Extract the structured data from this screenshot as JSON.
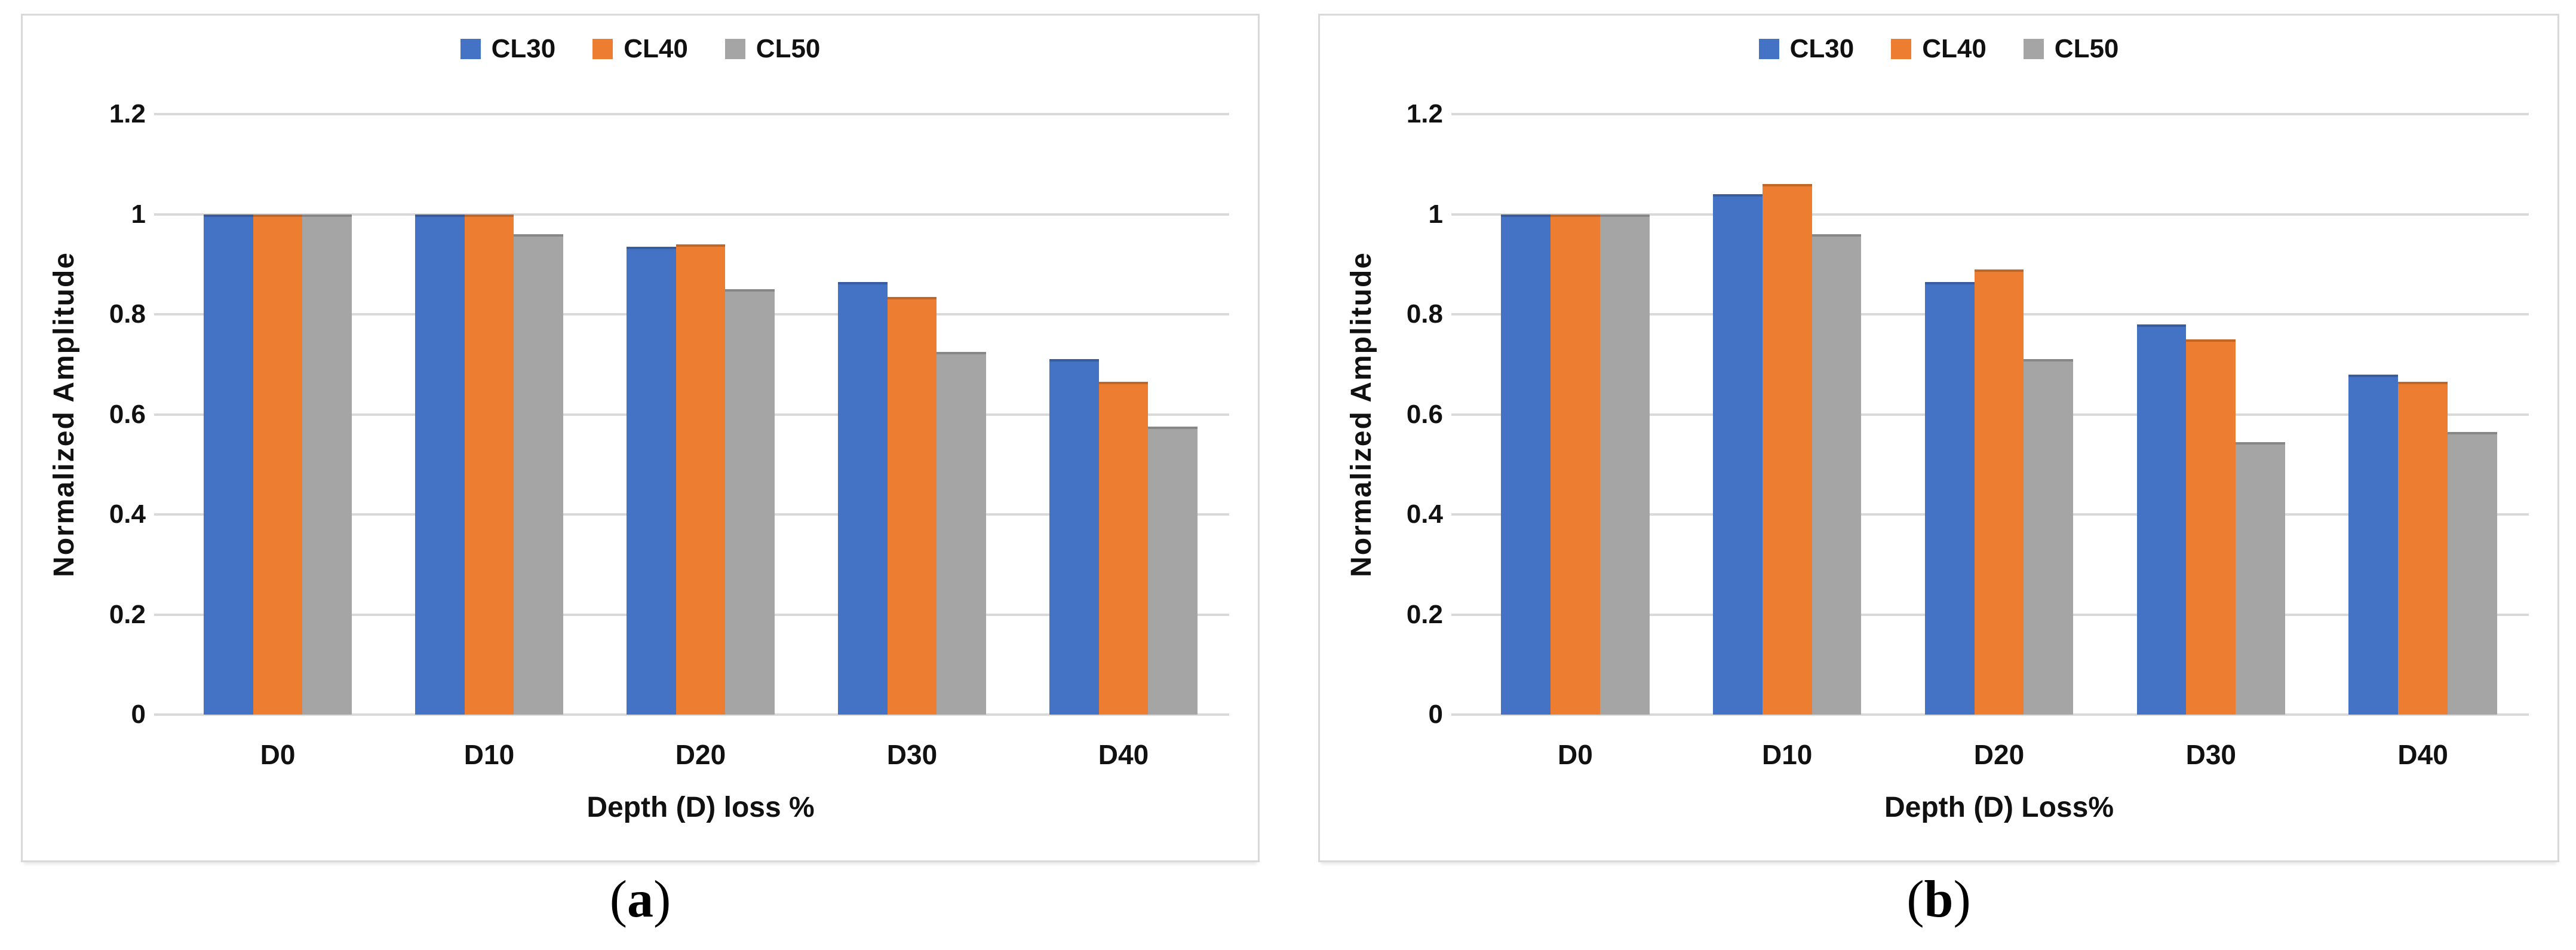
{
  "figure": {
    "panels": [
      {
        "id": "a",
        "caption": {
          "open": "(",
          "letter": "a",
          "close": ")"
        }
      },
      {
        "id": "b",
        "caption": {
          "open": "(",
          "letter": "b",
          "close": ")"
        }
      }
    ]
  },
  "colors": {
    "cl30": "#4472C4",
    "cl40": "#ED7D31",
    "cl50": "#A5A5A5",
    "gridline": "#D9D9D9",
    "panel_border": "#D9D9D9",
    "label_text": "#111111"
  },
  "chart_data": [
    {
      "type": "bar",
      "panel": "a",
      "title": "",
      "categories": [
        "D0",
        "D10",
        "D20",
        "D30",
        "D40"
      ],
      "series": [
        {
          "name": "CL30",
          "color": "#4472C4",
          "values": [
            1.0,
            1.0,
            0.935,
            0.865,
            0.71
          ]
        },
        {
          "name": "CL40",
          "color": "#ED7D31",
          "values": [
            1.0,
            1.0,
            0.94,
            0.835,
            0.665
          ]
        },
        {
          "name": "CL50",
          "color": "#A5A5A5",
          "values": [
            1.0,
            0.96,
            0.85,
            0.725,
            0.575
          ]
        }
      ],
      "xlabel": "Depth (D) loss %",
      "ylabel": "Normalized Amplitude",
      "ylim": [
        0,
        1.2
      ],
      "yticks": [
        0,
        0.2,
        0.4,
        0.6,
        0.8,
        1,
        1.2
      ],
      "ytick_labels": [
        "0",
        "0.2",
        "0.4",
        "0.6",
        "0.8",
        "1",
        "1.2"
      ],
      "grid": true,
      "legend_position": "top-center",
      "caption": "(a)"
    },
    {
      "type": "bar",
      "panel": "b",
      "title": "",
      "categories": [
        "D0",
        "D10",
        "D20",
        "D30",
        "D40"
      ],
      "series": [
        {
          "name": "CL30",
          "color": "#4472C4",
          "values": [
            1.0,
            1.04,
            0.865,
            0.78,
            0.68
          ]
        },
        {
          "name": "CL40",
          "color": "#ED7D31",
          "values": [
            1.0,
            1.06,
            0.89,
            0.75,
            0.665
          ]
        },
        {
          "name": "CL50",
          "color": "#A5A5A5",
          "values": [
            1.0,
            0.96,
            0.71,
            0.545,
            0.565
          ]
        }
      ],
      "xlabel": "Depth (D) Loss%",
      "ylabel": "Normalized Amplitude",
      "ylim": [
        0,
        1.2
      ],
      "yticks": [
        0,
        0.2,
        0.4,
        0.6,
        0.8,
        1,
        1.2
      ],
      "ytick_labels": [
        "0",
        "0.2",
        "0.4",
        "0.6",
        "0.8",
        "1",
        "1.2"
      ],
      "grid": true,
      "legend_position": "top-center",
      "caption": "(b)"
    }
  ]
}
